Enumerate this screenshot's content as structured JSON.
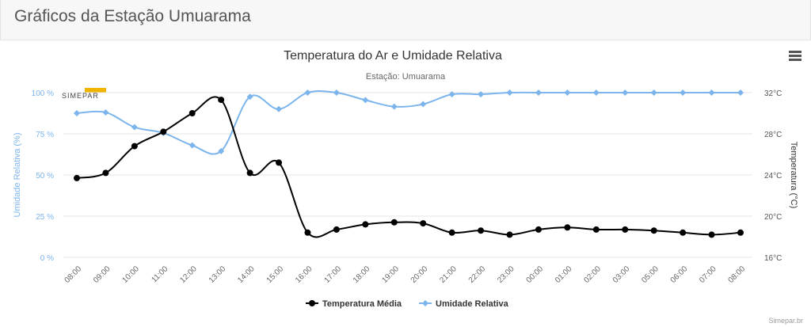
{
  "header": {
    "title": "Gráficos da Estação Umuarama"
  },
  "credit": "Simepar.br",
  "logo_text": "SIMEPAR",
  "colors": {
    "temperature": "#000000",
    "humidity": "#7cb5ec",
    "grid": "#e6e6e6"
  },
  "chart_data": {
    "type": "line",
    "title": "Temperatura do Ar e Umidade Relativa",
    "subtitle": "Estação: Umuarama",
    "categories": [
      "08:00",
      "09:00",
      "10:00",
      "11:00",
      "12:00",
      "13:00",
      "14:00",
      "15:00",
      "16:00",
      "17:00",
      "18:00",
      "19:00",
      "20:00",
      "21:00",
      "22:00",
      "23:00",
      "00:00",
      "01:00",
      "02:00",
      "03:00",
      "05:00",
      "06:00",
      "07:00",
      "08:00"
    ],
    "y_left": {
      "label": "Umidade Relativa (%)",
      "ticks": [
        "0 %",
        "25 %",
        "50 %",
        "75 %",
        "100 %"
      ],
      "range": [
        0,
        100
      ]
    },
    "y_right": {
      "label": "Temperatura (°C)",
      "ticks": [
        "16°C",
        "20°C",
        "24°C",
        "28°C",
        "32°C"
      ],
      "range": [
        16,
        32
      ]
    },
    "series": [
      {
        "name": "Temperatura Média",
        "axis": "right",
        "values": [
          23.7,
          24.2,
          26.8,
          28.2,
          30.0,
          31.3,
          24.2,
          25.2,
          18.4,
          18.7,
          19.2,
          19.4,
          19.3,
          18.4,
          18.6,
          18.2,
          18.7,
          18.9,
          18.7,
          18.7,
          18.6,
          18.4,
          18.2,
          18.4
        ]
      },
      {
        "name": "Umidade Relativa",
        "axis": "left",
        "values": [
          87.5,
          88,
          79,
          75.5,
          68,
          64.5,
          97.5,
          90,
          100,
          100,
          95.5,
          91.5,
          93,
          99,
          99,
          100,
          100,
          100,
          100,
          100,
          100,
          100,
          100,
          100
        ]
      }
    ],
    "legend": "bottom-center",
    "grid": true
  }
}
